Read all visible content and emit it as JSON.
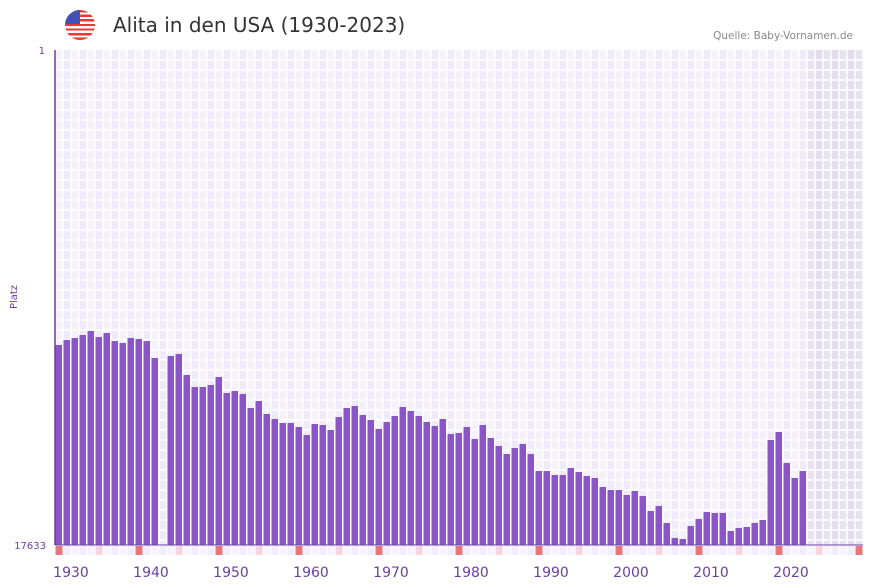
{
  "header": {
    "title": "Alita in den USA (1930-2023)",
    "source": "Quelle: Baby-Vornamen.de",
    "flag_icon": "us-flag-icon"
  },
  "chart_data": {
    "type": "bar",
    "title": "Alita in den USA (1930-2023)",
    "xlabel": "",
    "ylabel": "Platz",
    "y_reversed": true,
    "ylim": [
      1,
      17633
    ],
    "y_tick_labels": [
      "1",
      "17633"
    ],
    "xlim": [
      1930,
      2030
    ],
    "x_tick_labels": [
      "1930",
      "1940",
      "1950",
      "1960",
      "1970",
      "1980",
      "1990",
      "2000",
      "2010",
      "2020"
    ],
    "future_shaded_from": 2024,
    "colors": {
      "bar": "#8a55c6",
      "axis": "#6b3fa0",
      "decade_marker": "#e8747c",
      "half_decade_marker": "#f5d6df",
      "future": "#e4dfec"
    },
    "x": [
      1930,
      1931,
      1932,
      1933,
      1934,
      1935,
      1936,
      1937,
      1938,
      1939,
      1940,
      1941,
      1942,
      1943,
      1944,
      1945,
      1946,
      1947,
      1948,
      1949,
      1950,
      1951,
      1952,
      1953,
      1954,
      1955,
      1956,
      1957,
      1958,
      1959,
      1960,
      1961,
      1962,
      1963,
      1964,
      1965,
      1966,
      1967,
      1968,
      1969,
      1970,
      1971,
      1972,
      1973,
      1974,
      1975,
      1976,
      1977,
      1978,
      1979,
      1980,
      1981,
      1982,
      1983,
      1984,
      1985,
      1986,
      1987,
      1988,
      1989,
      1990,
      1991,
      1992,
      1993,
      1994,
      1995,
      1996,
      1997,
      1998,
      1999,
      2000,
      2001,
      2002,
      2003,
      2004,
      2005,
      2006,
      2007,
      2008,
      2009,
      2010,
      2011,
      2012,
      2013,
      2014,
      2015,
      2016,
      2017,
      2018,
      2019,
      2020,
      2021,
      2022,
      2023
    ],
    "values": [
      10509,
      10331,
      10260,
      10153,
      10010,
      10224,
      10081,
      10366,
      10437,
      10260,
      10295,
      10366,
      10972,
      null,
      10901,
      10829,
      11577,
      12005,
      12005,
      11934,
      11649,
      12218,
      12147,
      12254,
      12753,
      12503,
      12967,
      13145,
      13288,
      13288,
      13430,
      13715,
      13323,
      13359,
      13537,
      13074,
      12753,
      12682,
      13002,
      13180,
      13501,
      13252,
      13038,
      12717,
      12860,
      13038,
      13252,
      13394,
      13145,
      13679,
      13643,
      13430,
      13857,
      13359,
      13821,
      14106,
      14391,
      14178,
      14035,
      14391,
      14997,
      14997,
      15140,
      15140,
      14890,
      15033,
      15175,
      15246,
      15567,
      15674,
      15674,
      15852,
      15710,
      15888,
      16421,
      16243,
      16849,
      17383,
      17419,
      16956,
      16706,
      16457,
      16492,
      16492,
      17134,
      17027,
      16991,
      16849,
      16742,
      13893,
      13608,
      14712,
      15246,
      14997
    ]
  }
}
